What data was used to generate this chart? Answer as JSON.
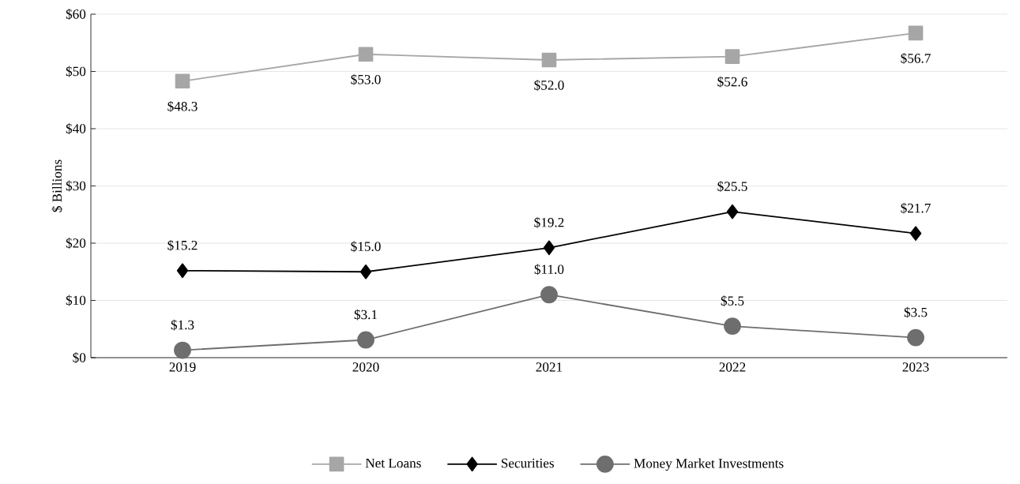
{
  "chart_data": {
    "type": "line",
    "ylabel": "$ Billions",
    "categories": [
      "2019",
      "2020",
      "2021",
      "2022",
      "2023"
    ],
    "series": [
      {
        "name": "Net Loans",
        "color": "#a6a6a6",
        "marker": "square",
        "values": [
          48.3,
          53.0,
          52.0,
          52.6,
          56.7
        ],
        "value_labels": [
          "$48.3",
          "$53.0",
          "$52.0",
          "$52.6",
          "$56.7"
        ]
      },
      {
        "name": "Securities",
        "color": "#000000",
        "marker": "diamond",
        "values": [
          15.2,
          15.0,
          19.2,
          25.5,
          21.7
        ],
        "value_labels": [
          "$15.2",
          "$15.0",
          "$19.2",
          "$25.5",
          "$21.7"
        ]
      },
      {
        "name": "Money Market Investments",
        "color": "#6e6e6e",
        "marker": "circle",
        "values": [
          1.3,
          3.1,
          11.0,
          5.5,
          3.5
        ],
        "value_labels": [
          "$1.3",
          "$3.1",
          "$11.0",
          "$5.5",
          "$3.5"
        ]
      }
    ],
    "ylim": [
      0,
      60
    ],
    "yticks": [
      {
        "value": 0,
        "label": "$0"
      },
      {
        "value": 10,
        "label": "$10"
      },
      {
        "value": 20,
        "label": "$20"
      },
      {
        "value": 30,
        "label": "$30"
      },
      {
        "value": 40,
        "label": "$40"
      },
      {
        "value": 50,
        "label": "$50"
      },
      {
        "value": 60,
        "label": "$60"
      }
    ],
    "grid": "y",
    "legend": "bottom",
    "line_style": "solid"
  }
}
